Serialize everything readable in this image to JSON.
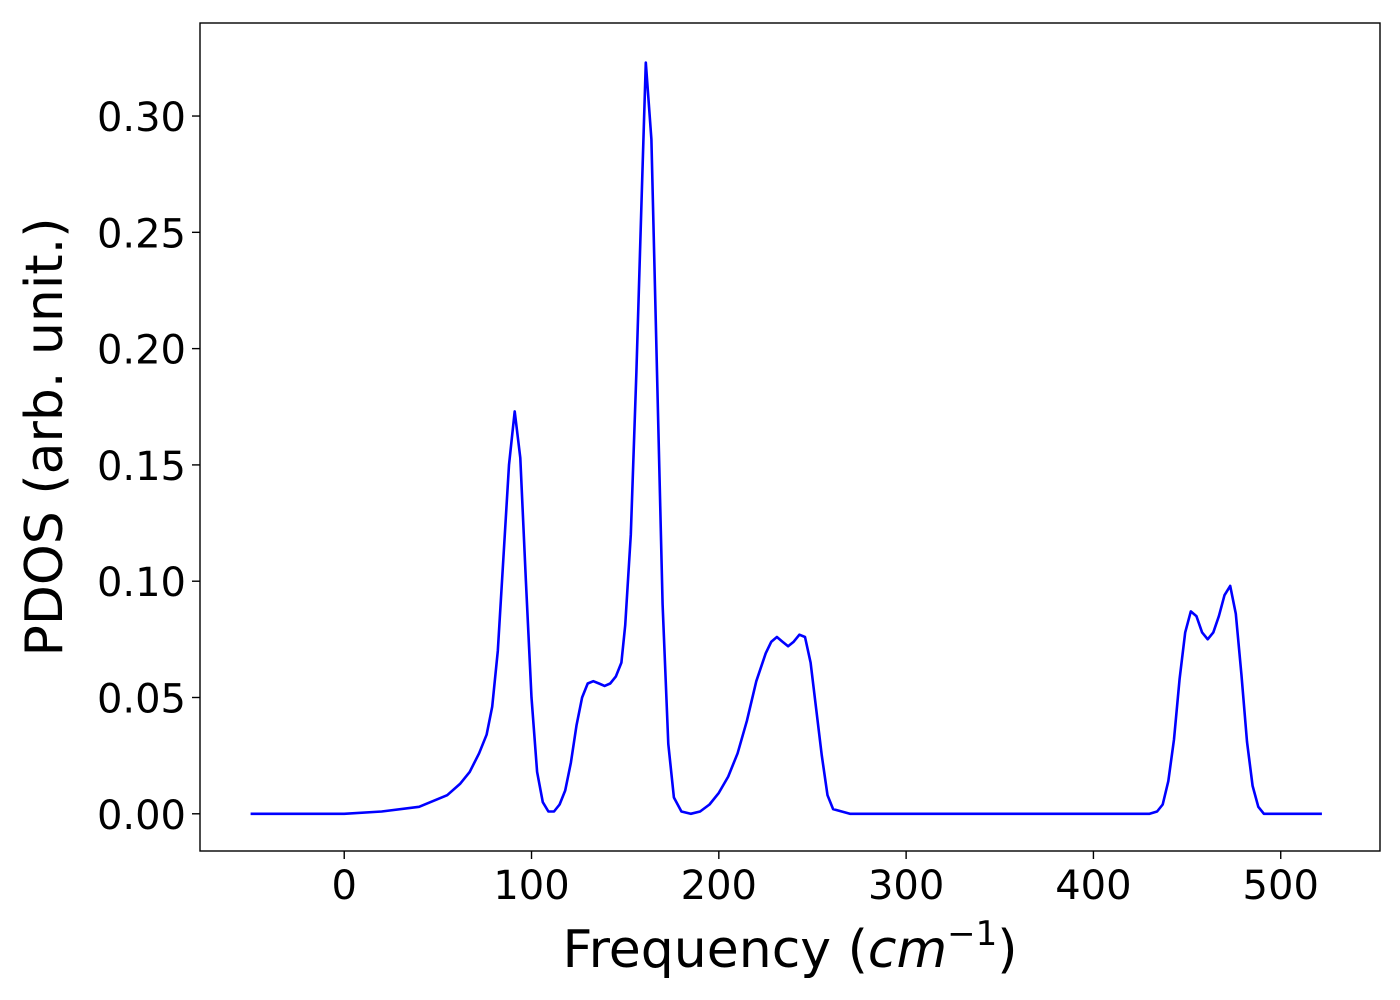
{
  "chart_data": {
    "type": "line",
    "title": "",
    "xlabel": "Frequency (",
    "xlabel_math": "cm",
    "xlabel_sup": "−1",
    "xlabel_close": ")",
    "ylabel": "PDOS (arb. unit.)",
    "xlim": [
      -77,
      553
    ],
    "ylim": [
      -0.016,
      0.34
    ],
    "xticks": [
      0,
      100,
      200,
      300,
      400,
      500
    ],
    "xtick_labels": [
      "0",
      "100",
      "200",
      "300",
      "400",
      "500"
    ],
    "yticks": [
      0.0,
      0.05,
      0.1,
      0.15,
      0.2,
      0.25,
      0.3
    ],
    "ytick_labels": [
      "0.00",
      "0.05",
      "0.10",
      "0.15",
      "0.20",
      "0.25",
      "0.30"
    ],
    "grid": false,
    "legend": "none",
    "series": [
      {
        "color": "#0000ff",
        "x": [
          -50,
          0,
          20,
          40,
          55,
          62,
          67,
          72,
          76,
          79,
          82,
          85,
          88,
          91,
          94,
          97,
          100,
          103,
          106,
          109,
          112,
          115,
          118,
          121,
          124,
          127,
          130,
          133,
          136,
          139,
          142,
          145,
          148,
          150,
          153,
          156,
          159,
          161,
          164,
          167,
          170,
          173,
          176,
          180,
          185,
          190,
          195,
          200,
          205,
          210,
          215,
          220,
          225,
          228,
          231,
          234,
          237,
          240,
          243,
          246,
          249,
          252,
          255,
          258,
          261,
          270,
          300,
          350,
          400,
          430,
          434,
          437,
          440,
          443,
          446,
          449,
          452,
          455,
          458,
          461,
          464,
          467,
          470,
          473,
          476,
          479,
          482,
          485,
          488,
          491,
          500,
          522
        ],
        "y": [
          0.0,
          0.0,
          0.001,
          0.003,
          0.008,
          0.013,
          0.018,
          0.026,
          0.034,
          0.046,
          0.07,
          0.11,
          0.15,
          0.173,
          0.153,
          0.1,
          0.05,
          0.018,
          0.005,
          0.001,
          0.001,
          0.004,
          0.01,
          0.022,
          0.038,
          0.05,
          0.056,
          0.057,
          0.056,
          0.055,
          0.056,
          0.059,
          0.065,
          0.081,
          0.12,
          0.19,
          0.27,
          0.323,
          0.29,
          0.19,
          0.09,
          0.03,
          0.007,
          0.001,
          0.0,
          0.001,
          0.004,
          0.009,
          0.016,
          0.026,
          0.04,
          0.057,
          0.069,
          0.074,
          0.076,
          0.074,
          0.072,
          0.074,
          0.077,
          0.076,
          0.065,
          0.045,
          0.025,
          0.008,
          0.002,
          0.0,
          0.0,
          0.0,
          0.0,
          0.0,
          0.001,
          0.004,
          0.014,
          0.032,
          0.058,
          0.078,
          0.087,
          0.085,
          0.078,
          0.075,
          0.078,
          0.085,
          0.094,
          0.098,
          0.086,
          0.06,
          0.031,
          0.012,
          0.003,
          0.0,
          0.0,
          0.0
        ]
      }
    ]
  }
}
